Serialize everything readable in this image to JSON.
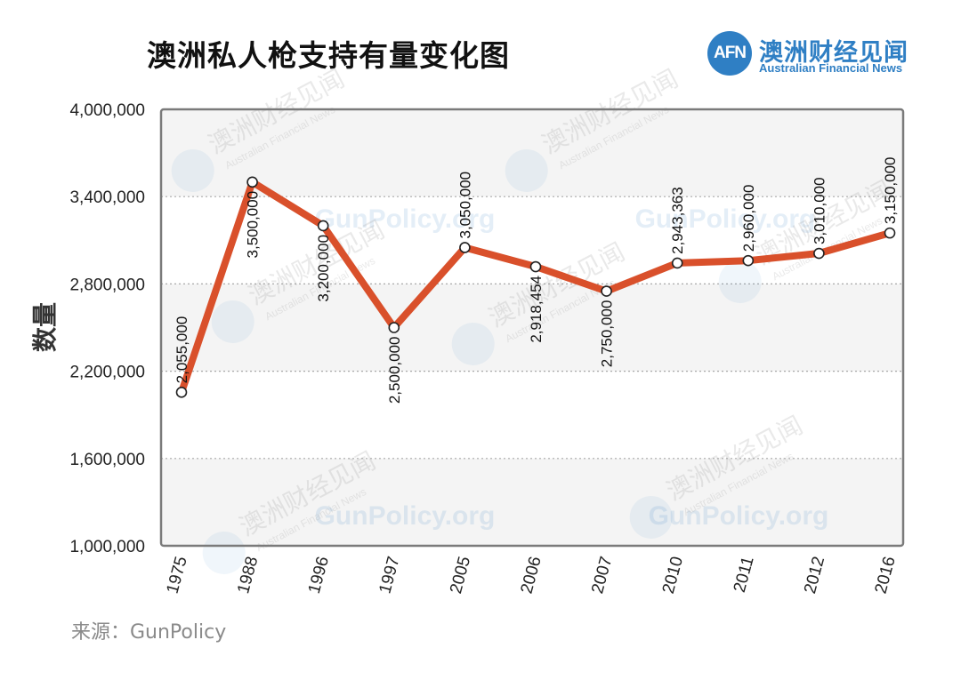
{
  "header": {
    "title": "澳洲私人枪支持有量变化图",
    "logo_mark": "AFN",
    "logo_cn": "澳洲财经见闻",
    "logo_en": "Australian Financial News"
  },
  "source": "来源：GunPolicy",
  "watermark": {
    "site": "GunPolicy.org",
    "brand_cn": "澳洲财经见闻",
    "brand_en": "Australian Financial News"
  },
  "colors": {
    "line": "#d9502b",
    "plot_border": "#7a7a7a",
    "band": "#f4f4f4",
    "grid": "#a8a8a8",
    "brand": "#2f7fc4"
  },
  "chart_data": {
    "type": "line",
    "title": "澳洲私人枪支持有量变化图",
    "xlabel": "",
    "ylabel": "数量",
    "categories": [
      "1975",
      "1988",
      "1996",
      "1997",
      "2005",
      "2006",
      "2007",
      "2010",
      "2011",
      "2012",
      "2016"
    ],
    "values": [
      2055000,
      3500000,
      3200000,
      2500000,
      3050000,
      2918454,
      2750000,
      2943363,
      2960000,
      3010000,
      3150000
    ],
    "data_labels": [
      "2,055,000",
      "3,500,000",
      "3,200,000",
      "2,500,000",
      "3,050,000",
      "2,918,454",
      "2,750,000",
      "2,943,363",
      "2,960,000",
      "3,010,000",
      "3,150,000"
    ],
    "ylim": [
      1000000,
      4000000
    ],
    "yticks": [
      1000000,
      1600000,
      2200000,
      2800000,
      3400000,
      4000000
    ],
    "ytick_labels": [
      "1,000,000",
      "1,600,000",
      "2,200,000",
      "2,800,000",
      "3,400,000",
      "4,000,000"
    ],
    "grid": true,
    "legend": "none"
  }
}
